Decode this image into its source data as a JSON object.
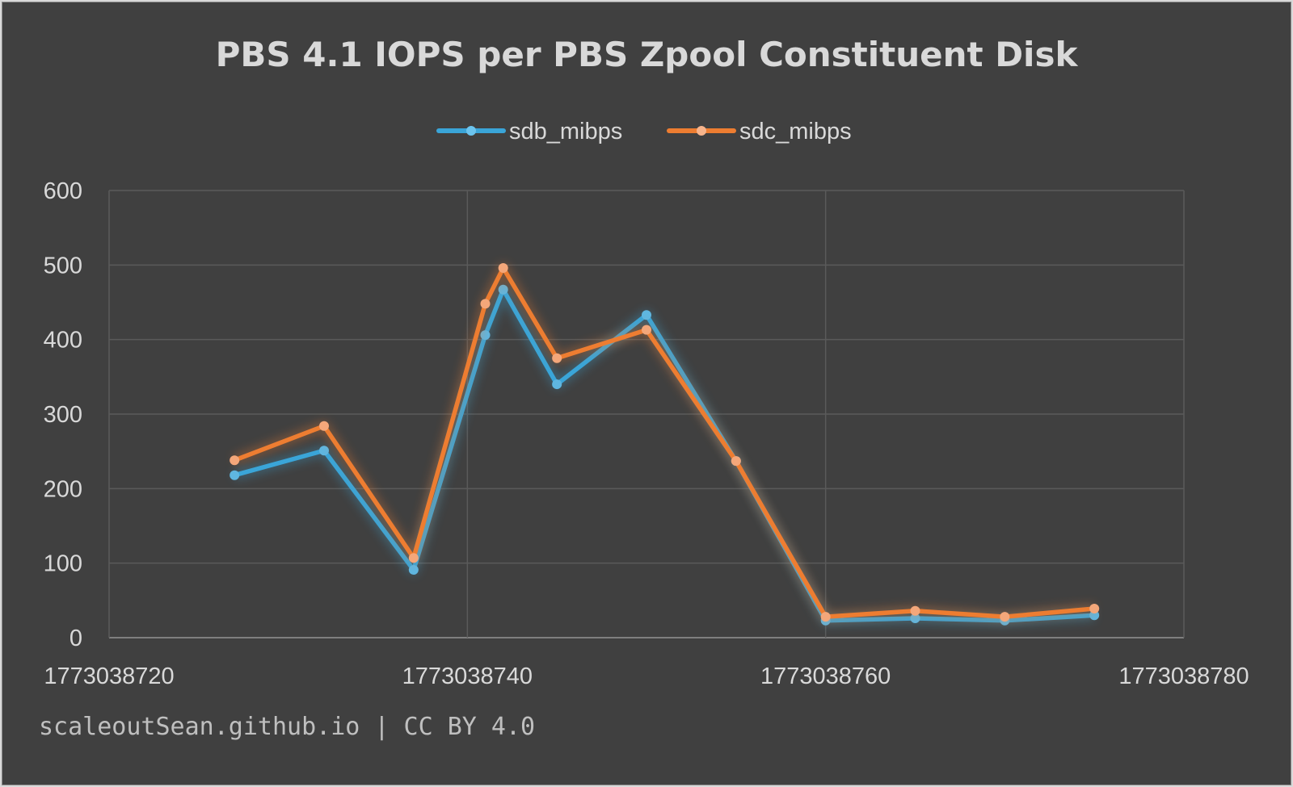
{
  "credit": "scaleoutSean.github.io | CC BY 4.0",
  "chart_data": {
    "type": "scatter",
    "title": "PBS 4.1 IOPS per  PBS Zpool Constituent Disk",
    "xlabel": "",
    "ylabel": "",
    "xlim": [
      1773038720,
      1773038780
    ],
    "ylim": [
      0,
      600
    ],
    "x_ticks": [
      "1773038720",
      "1773038740",
      "1773038760",
      "1773038780"
    ],
    "y_ticks": [
      "0",
      "100",
      "200",
      "300",
      "400",
      "500",
      "600"
    ],
    "grid": true,
    "legend_position": "top",
    "series": [
      {
        "name": "sdb_mibps",
        "color": "#3aa5d8",
        "x": [
          1773038727,
          1773038732,
          1773038737,
          1773038741,
          1773038742,
          1773038745,
          1773038750,
          1773038755,
          1773038760,
          1773038765,
          1773038770,
          1773038775
        ],
        "y": [
          218,
          251,
          91,
          406,
          467,
          340,
          433,
          237,
          23,
          26,
          23,
          30
        ]
      },
      {
        "name": "sdc_mibps",
        "color": "#ed7d31",
        "x": [
          1773038727,
          1773038732,
          1773038737,
          1773038741,
          1773038742,
          1773038745,
          1773038750,
          1773038755,
          1773038760,
          1773038765,
          1773038770,
          1773038775
        ],
        "y": [
          238,
          284,
          107,
          448,
          496,
          375,
          413,
          237,
          28,
          36,
          28,
          39
        ]
      }
    ]
  }
}
